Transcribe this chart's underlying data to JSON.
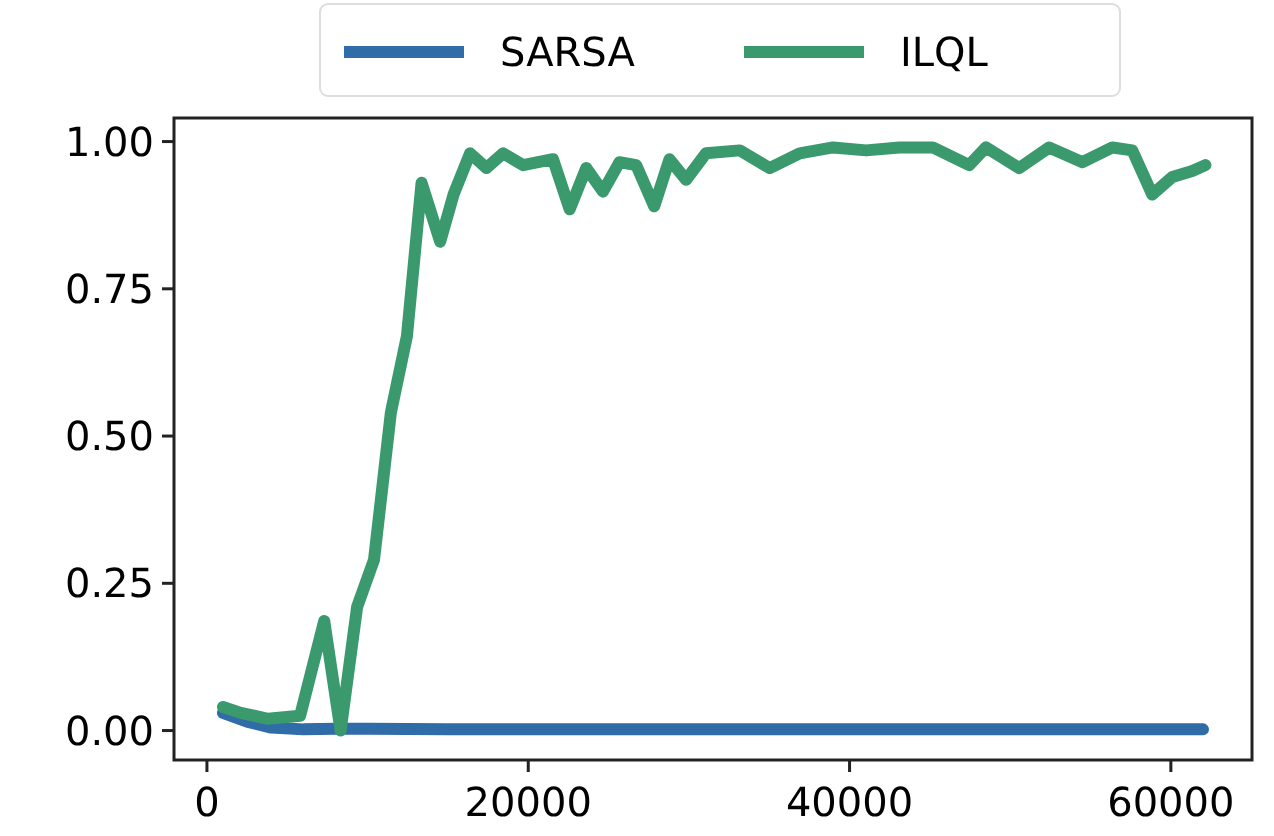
{
  "chart_data": {
    "type": "line",
    "x": [
      1000,
      2100,
      3800,
      5800,
      7300,
      8320,
      9350,
      10400,
      11450,
      12450,
      13360,
      14520,
      15350,
      16380,
      17400,
      18440,
      19680,
      21540,
      22580,
      23610,
      24650,
      25680,
      26720,
      27840,
      28790,
      29820,
      31060,
      33170,
      35030,
      36890,
      38970,
      41030,
      43100,
      45180,
      47450,
      48490,
      50560,
      52420,
      54500,
      56360,
      57600,
      58840,
      60090,
      61330,
      62150
    ],
    "series": [
      {
        "name": "SARSA",
        "color": "#2f6ca8",
        "x": [
          1000,
          2500,
          4000,
          6000,
          8000,
          10000,
          15000,
          20000,
          30000,
          40000,
          50000,
          62000
        ],
        "values": [
          0.03,
          0.015,
          0.005,
          0.002,
          0.003,
          0.003,
          0.002,
          0.002,
          0.002,
          0.002,
          0.002,
          0.002
        ]
      },
      {
        "name": "ILQL",
        "color": "#3a9a6e",
        "values": [
          0.04,
          0.03,
          0.02,
          0.025,
          0.186,
          0.0,
          0.21,
          0.29,
          0.54,
          0.67,
          0.93,
          0.83,
          0.91,
          0.98,
          0.955,
          0.98,
          0.96,
          0.97,
          0.885,
          0.955,
          0.915,
          0.965,
          0.96,
          0.89,
          0.97,
          0.935,
          0.98,
          0.985,
          0.955,
          0.98,
          0.99,
          0.985,
          0.99,
          0.99,
          0.96,
          0.99,
          0.955,
          0.99,
          0.965,
          0.99,
          0.985,
          0.91,
          0.94,
          0.95,
          0.96
        ]
      }
    ],
    "xlim": [
      -2050,
      65050
    ],
    "xticks": [
      0,
      20000,
      40000,
      60000
    ],
    "ylim": [
      -0.05,
      1.04
    ],
    "yticks": [
      {
        "value": 0,
        "label": "0.00"
      },
      {
        "value": 0.25,
        "label": "0.25"
      },
      {
        "value": 0.5,
        "label": "0.50"
      },
      {
        "value": 0.75,
        "label": "0.75"
      },
      {
        "value": 1,
        "label": "1.00"
      }
    ],
    "legend": "top",
    "grid": false,
    "line_style": "solid",
    "marker": "none"
  }
}
